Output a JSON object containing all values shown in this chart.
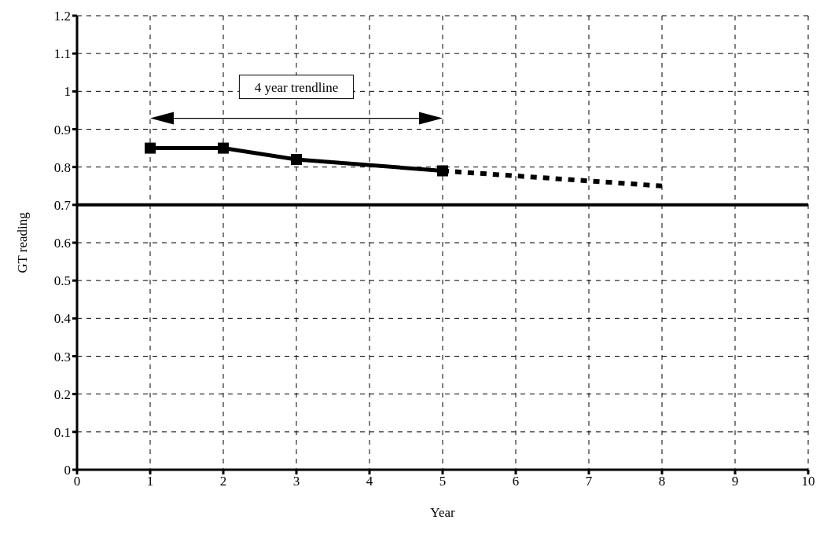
{
  "chart_data": {
    "type": "line",
    "xlabel": "Year",
    "ylabel": "GT reading",
    "xlim": [
      0,
      10
    ],
    "xticks": [
      0,
      1,
      2,
      3,
      4,
      5,
      6,
      7,
      8,
      9,
      10
    ],
    "ylim": [
      0,
      1.2
    ],
    "yticks": [
      0,
      0.1,
      0.2,
      0.3,
      0.4,
      0.5,
      0.6,
      0.7,
      0.8,
      0.9,
      1,
      1.1,
      1.2
    ],
    "grid": true,
    "series": [
      {
        "color": "#000000",
        "x": [
          1,
          2,
          3,
          5
        ],
        "values": [
          0.85,
          0.85,
          0.82,
          0.79
        ],
        "marker": "square",
        "line_style": "solid"
      },
      {
        "color": "#000000",
        "x": [
          5,
          8
        ],
        "values": [
          0.79,
          0.75
        ],
        "marker": "none",
        "line_style": "dashed"
      }
    ],
    "ref_lines": [
      {
        "axis": "y",
        "value": 0.7,
        "color": "#000000",
        "line_style": "solid"
      }
    ],
    "annotations": [
      "4 year trendline"
    ]
  }
}
